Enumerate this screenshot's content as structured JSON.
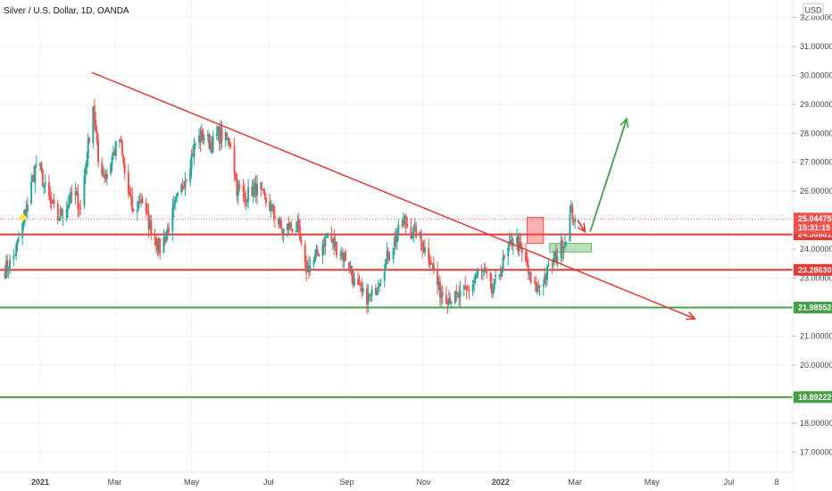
{
  "header": {
    "title": "Silver / U.S. Dollar, 1D, OANDA",
    "currency_button": "USD"
  },
  "chart_data": {
    "type": "candlestick",
    "symbol": "XAGUSD",
    "timeframe": "1D",
    "ylim": [
      16.3,
      32.6
    ],
    "price_ticks": [
      {
        "value": 32,
        "label": "32.00000"
      },
      {
        "value": 31,
        "label": "31.00000"
      },
      {
        "value": 30,
        "label": "30.00000"
      },
      {
        "value": 29,
        "label": "29.00000"
      },
      {
        "value": 28,
        "label": "28.00000"
      },
      {
        "value": 27,
        "label": "27.00000"
      },
      {
        "value": 26,
        "label": "26.00000"
      },
      {
        "value": 24,
        "label": "24.00000"
      },
      {
        "value": 23,
        "label": "23.00000"
      },
      {
        "value": 21,
        "label": "21.00000"
      },
      {
        "value": 20,
        "label": "20.00000"
      },
      {
        "value": 19,
        "label": "19.00000"
      },
      {
        "value": 18,
        "label": "18.00000"
      },
      {
        "value": 17,
        "label": "17.00000"
      }
    ],
    "time_ticks": [
      {
        "label": "2021",
        "day": 0,
        "bold": true
      },
      {
        "label": "Mar",
        "day": 59,
        "bold": false
      },
      {
        "label": "May",
        "day": 120,
        "bold": false
      },
      {
        "label": "Jul",
        "day": 181,
        "bold": false
      },
      {
        "label": "Sep",
        "day": 243,
        "bold": false
      },
      {
        "label": "Nov",
        "day": 304,
        "bold": false
      },
      {
        "label": "2022",
        "day": 365,
        "bold": true
      },
      {
        "label": "Mar",
        "day": 424,
        "bold": false
      },
      {
        "label": "May",
        "day": 485,
        "bold": false
      },
      {
        "label": "Jul",
        "day": 546,
        "bold": false
      },
      {
        "label": "8",
        "day": 584,
        "bold": false
      }
    ],
    "current_price": {
      "value": 25.04475,
      "label": "25.04475",
      "countdown": "15:31:15",
      "color": "#ef5350"
    },
    "levels": [
      {
        "value": 24.50881,
        "label": "24.50881",
        "color": "#e53935"
      },
      {
        "value": 23.2863,
        "label": "23.28630",
        "color": "#e53935"
      },
      {
        "value": 21.98552,
        "label": "21.98552",
        "color": "#43a047"
      },
      {
        "value": 18.89222,
        "label": "18.89222",
        "color": "#43a047"
      }
    ],
    "trendline": {
      "from": {
        "day": 41,
        "price": 30.1
      },
      "to": {
        "day": 519,
        "price": 21.6
      },
      "color": "#e53935"
    },
    "projection_arrow": {
      "from": {
        "day": 436,
        "price": 24.6
      },
      "to": {
        "day": 465,
        "price": 28.5
      },
      "color": "#43a047"
    },
    "down_arrow": {
      "from": {
        "day": 426,
        "price": 25.0
      },
      "to": {
        "day": 432,
        "price": 24.6
      },
      "color": "#e53935"
    },
    "zones": [
      {
        "day_start": 386,
        "day_end": 399,
        "price_high": 25.1,
        "price_low": 24.2,
        "color": "#ef5350"
      },
      {
        "day_start": 404,
        "day_end": 437,
        "price_high": 24.2,
        "price_low": 23.9,
        "color": "#66bb6a"
      }
    ],
    "marker": {
      "day": -14,
      "price": 25.1,
      "color": "#ffeb3b"
    },
    "colors": {
      "up": "#26a69a",
      "down": "#ef5350"
    },
    "anchors": [
      [
        -28,
        23.3
      ],
      [
        -22,
        23.6
      ],
      [
        -15,
        24.6
      ],
      [
        -10,
        25.6
      ],
      [
        -6,
        26.4
      ],
      [
        -2,
        27.1
      ],
      [
        3,
        26.2
      ],
      [
        8,
        25.6
      ],
      [
        14,
        25.1
      ],
      [
        20,
        25.4
      ],
      [
        27,
        26.0
      ],
      [
        32,
        25.4
      ],
      [
        36,
        26.9
      ],
      [
        42,
        29.0
      ],
      [
        46,
        27.0
      ],
      [
        52,
        26.5
      ],
      [
        58,
        27.3
      ],
      [
        63,
        27.8
      ],
      [
        68,
        26.3
      ],
      [
        74,
        25.2
      ],
      [
        80,
        25.8
      ],
      [
        85,
        25.0
      ],
      [
        90,
        24.5
      ],
      [
        95,
        24.0
      ],
      [
        102,
        24.8
      ],
      [
        108,
        25.6
      ],
      [
        113,
        26.2
      ],
      [
        118,
        26.9
      ],
      [
        124,
        27.8
      ],
      [
        130,
        27.9
      ],
      [
        136,
        27.6
      ],
      [
        141,
        28.0
      ],
      [
        146,
        27.8
      ],
      [
        151,
        27.7
      ],
      [
        156,
        26.1
      ],
      [
        162,
        25.8
      ],
      [
        167,
        26.0
      ],
      [
        171,
        26.1
      ],
      [
        178,
        25.7
      ],
      [
        186,
        25.2
      ],
      [
        192,
        24.6
      ],
      [
        198,
        24.8
      ],
      [
        204,
        24.7
      ],
      [
        210,
        23.3
      ],
      [
        216,
        23.5
      ],
      [
        222,
        24.0
      ],
      [
        228,
        24.5
      ],
      [
        232,
        24.2
      ],
      [
        238,
        23.9
      ],
      [
        244,
        23.6
      ],
      [
        250,
        22.7
      ],
      [
        256,
        22.4
      ],
      [
        262,
        22.3
      ],
      [
        267,
        22.8
      ],
      [
        272,
        23.4
      ],
      [
        278,
        24.0
      ],
      [
        283,
        24.5
      ],
      [
        289,
        25.0
      ],
      [
        293,
        24.6
      ],
      [
        298,
        24.6
      ],
      [
        304,
        24.1
      ],
      [
        310,
        23.6
      ],
      [
        316,
        22.6
      ],
      [
        322,
        22.4
      ],
      [
        328,
        22.3
      ],
      [
        334,
        22.4
      ],
      [
        340,
        22.6
      ],
      [
        346,
        23.1
      ],
      [
        352,
        23.2
      ],
      [
        358,
        22.5
      ],
      [
        364,
        23.2
      ],
      [
        370,
        23.8
      ],
      [
        376,
        24.5
      ],
      [
        381,
        23.9
      ],
      [
        386,
        23.4
      ],
      [
        390,
        22.6
      ],
      [
        395,
        22.7
      ],
      [
        401,
        23.1
      ],
      [
        407,
        23.6
      ],
      [
        412,
        24.0
      ],
      [
        416,
        24.3
      ],
      [
        421,
        25.3
      ],
      [
        424,
        25.04
      ]
    ]
  }
}
